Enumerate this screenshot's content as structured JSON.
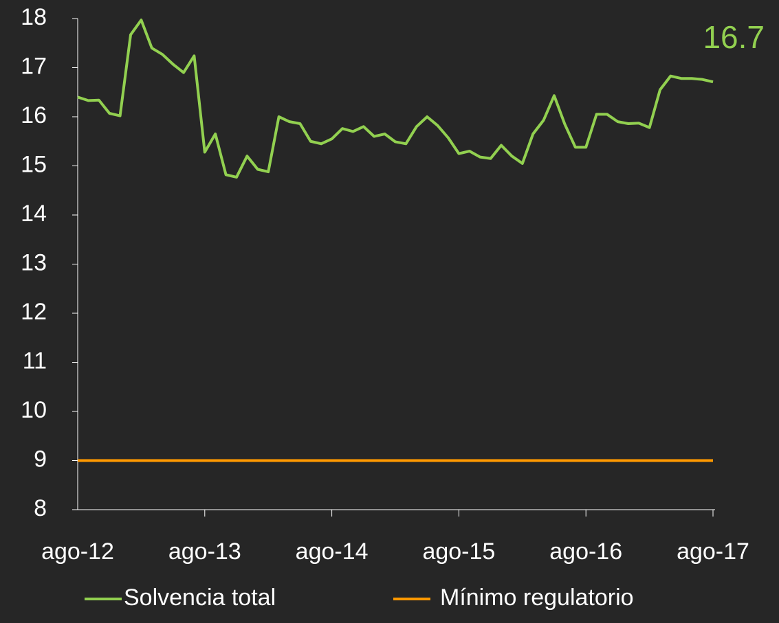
{
  "chart_data": {
    "type": "line",
    "categories": [
      "ago-12",
      null,
      null,
      null,
      null,
      null,
      null,
      null,
      null,
      null,
      null,
      null,
      "ago-13",
      null,
      null,
      null,
      null,
      null,
      null,
      null,
      null,
      null,
      null,
      null,
      "ago-14",
      null,
      null,
      null,
      null,
      null,
      null,
      null,
      null,
      null,
      null,
      null,
      "ago-15",
      null,
      null,
      null,
      null,
      null,
      null,
      null,
      null,
      null,
      null,
      null,
      "ago-16",
      null,
      null,
      null,
      null,
      null,
      null,
      null,
      null,
      null,
      null,
      null,
      "ago-17"
    ],
    "series": [
      {
        "name": "Solvencia total",
        "color": "#92d050",
        "values": [
          16.4,
          16.33,
          16.34,
          16.07,
          16.02,
          17.67,
          17.97,
          17.4,
          17.27,
          17.07,
          16.9,
          17.24,
          15.28,
          15.65,
          14.82,
          14.77,
          15.2,
          14.93,
          14.88,
          16.0,
          15.9,
          15.86,
          15.5,
          15.45,
          15.55,
          15.76,
          15.7,
          15.8,
          15.6,
          15.65,
          15.49,
          15.45,
          15.8,
          16.0,
          15.82,
          15.57,
          15.25,
          15.3,
          15.18,
          15.15,
          15.42,
          15.2,
          15.05,
          15.65,
          15.93,
          16.43,
          15.85,
          15.38,
          15.38,
          16.05,
          16.05,
          15.9,
          15.86,
          15.87,
          15.78,
          16.55,
          16.83,
          16.78,
          16.78,
          16.76,
          16.71
        ]
      },
      {
        "name": "Mínimo regulatorio",
        "color": "#ff9900",
        "values": [
          9,
          9,
          9,
          9,
          9,
          9,
          9,
          9,
          9,
          9,
          9,
          9,
          9,
          9,
          9,
          9,
          9,
          9,
          9,
          9,
          9,
          9,
          9,
          9,
          9,
          9,
          9,
          9,
          9,
          9,
          9,
          9,
          9,
          9,
          9,
          9,
          9,
          9,
          9,
          9,
          9,
          9,
          9,
          9,
          9,
          9,
          9,
          9,
          9,
          9,
          9,
          9,
          9,
          9,
          9,
          9,
          9,
          9,
          9,
          9,
          9
        ]
      }
    ],
    "annotations": [
      {
        "text": "16.7",
        "value": 16.7,
        "color": "#92d050"
      }
    ],
    "ylim": [
      8,
      18
    ],
    "yticks": [
      8,
      9,
      10,
      11,
      12,
      13,
      14,
      15,
      16,
      17,
      18
    ],
    "legend": "bottom"
  }
}
